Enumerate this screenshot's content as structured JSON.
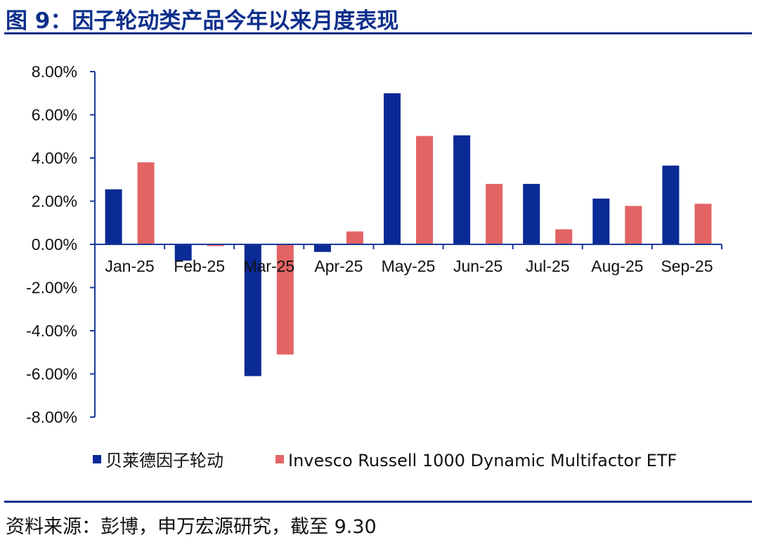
{
  "page": {
    "title": "图 9：因子轮动类产品今年以来月度表现",
    "source": "资料来源：彭博，申万宏源研究，截至 9.30"
  },
  "colors": {
    "accent": "#0d2f8c",
    "series1": "#0a2a95",
    "series2": "#e36464"
  },
  "chart_data": {
    "type": "bar",
    "categories": [
      "Jan-25",
      "Feb-25",
      "Mar-25",
      "Apr-25",
      "May-25",
      "Jun-25",
      "Jul-25",
      "Aug-25",
      "Sep-25"
    ],
    "series": [
      {
        "name": "贝莱德因子轮动",
        "values": [
          2.55,
          -0.75,
          -6.1,
          -0.35,
          7.0,
          5.05,
          2.8,
          2.12,
          3.65
        ]
      },
      {
        "name": "Invesco Russell 1000 Dynamic Multifactor ETF",
        "values": [
          3.8,
          -0.08,
          -5.1,
          0.6,
          5.02,
          2.8,
          0.7,
          1.78,
          1.88
        ]
      }
    ],
    "ylim": [
      -8,
      8
    ],
    "yticks": [
      8,
      6,
      4,
      2,
      0,
      -2,
      -4,
      -6,
      -8
    ],
    "ytick_labels": [
      "8.00%",
      "6.00%",
      "4.00%",
      "2.00%",
      "0.00%",
      "-2.00%",
      "-4.00%",
      "-6.00%",
      "-8.00%"
    ],
    "title": "",
    "xlabel": "",
    "ylabel": "",
    "grid": false,
    "legend_position": "bottom"
  }
}
